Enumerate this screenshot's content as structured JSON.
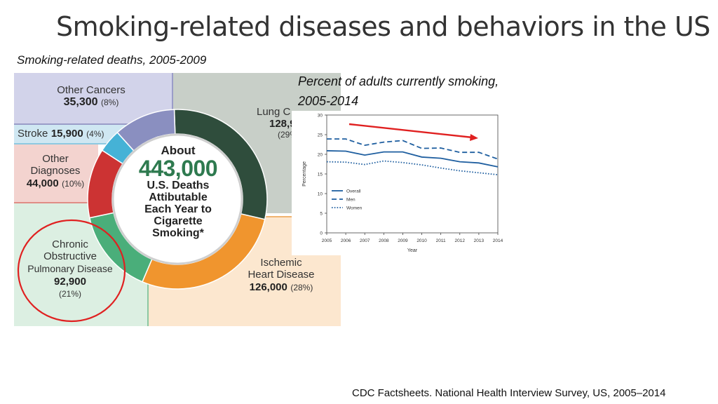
{
  "slide": {
    "title": "Smoking-related diseases and behaviors in the US",
    "left_subtitle": "Smoking-related deaths, 2005-2009",
    "right_subtitle": "Percent of adults currently smoking, 2005-2014",
    "footer": "CDC Factsheets. National Health Interview Survey, US, 2005–2014"
  },
  "infographic": {
    "center": {
      "line1": "About",
      "line2": "443,000",
      "line3": "U.S. Deaths",
      "line4": "Attibutable",
      "line5": "Each Year to",
      "line6": "Cigarette",
      "line7": "Smoking*"
    },
    "panels": {
      "other_cancers": {
        "label": "Other Cancers",
        "number": "35,300",
        "percent": "(8%)",
        "color": "#8a8fc0"
      },
      "stroke": {
        "label": "Stroke",
        "number": "15,900",
        "percent": "(4%)",
        "color": "#45b2d6"
      },
      "other_diagnoses": {
        "label1": "Other",
        "label2": "Diagnoses",
        "number": "44,000",
        "percent": "(10%)",
        "color": "#cc3333"
      },
      "copd": {
        "label1": "Chronic",
        "label2": "Obstructive",
        "label3": "Pulmonary Disease",
        "number": "92,900",
        "percent": "(21%)",
        "color": "#4aae7a"
      },
      "lung_cancer": {
        "label": "Lung C",
        "number": "128,9",
        "percent": "(29%",
        "color": "#2f4d3c"
      },
      "ischemic": {
        "label1": "Ischemic",
        "label2": "Heart Disease",
        "number": "126,000",
        "percent": "(28%)",
        "color": "#f0952e"
      }
    }
  },
  "chart_data": {
    "type": "line",
    "title": "",
    "xlabel": "Year",
    "ylabel": "Percentage",
    "x": [
      2005,
      2006,
      2007,
      2008,
      2009,
      2010,
      2011,
      2012,
      2013,
      2014
    ],
    "ylim": [
      0,
      30
    ],
    "yticks": [
      0,
      5,
      10,
      15,
      20,
      25,
      30
    ],
    "series": [
      {
        "name": "Overall",
        "style": "solid",
        "values": [
          20.9,
          20.8,
          19.8,
          20.6,
          20.6,
          19.3,
          19.0,
          18.1,
          17.8,
          16.8
        ]
      },
      {
        "name": "Men",
        "style": "dashed",
        "values": [
          23.9,
          23.9,
          22.3,
          23.1,
          23.5,
          21.5,
          21.6,
          20.5,
          20.5,
          18.8
        ]
      },
      {
        "name": "Women",
        "style": "dotted",
        "values": [
          18.1,
          18.0,
          17.4,
          18.3,
          17.9,
          17.3,
          16.5,
          15.8,
          15.3,
          14.8
        ]
      }
    ],
    "legend_position": "bottom-left",
    "series_color": "#1f5fa0",
    "arrow_color": "#e02020",
    "annotation": "red trend arrow pointing down-right"
  },
  "colors": {
    "highlight_circle": "#e02020",
    "gray_bg": "#c8c8c8",
    "lavender_bg": "#d2d3ea",
    "green_bg": "#dcefe2",
    "peach_bg": "#fce7cf",
    "pink_bg": "#f3d3cf",
    "lightblue_bg": "#cfe7f2"
  }
}
